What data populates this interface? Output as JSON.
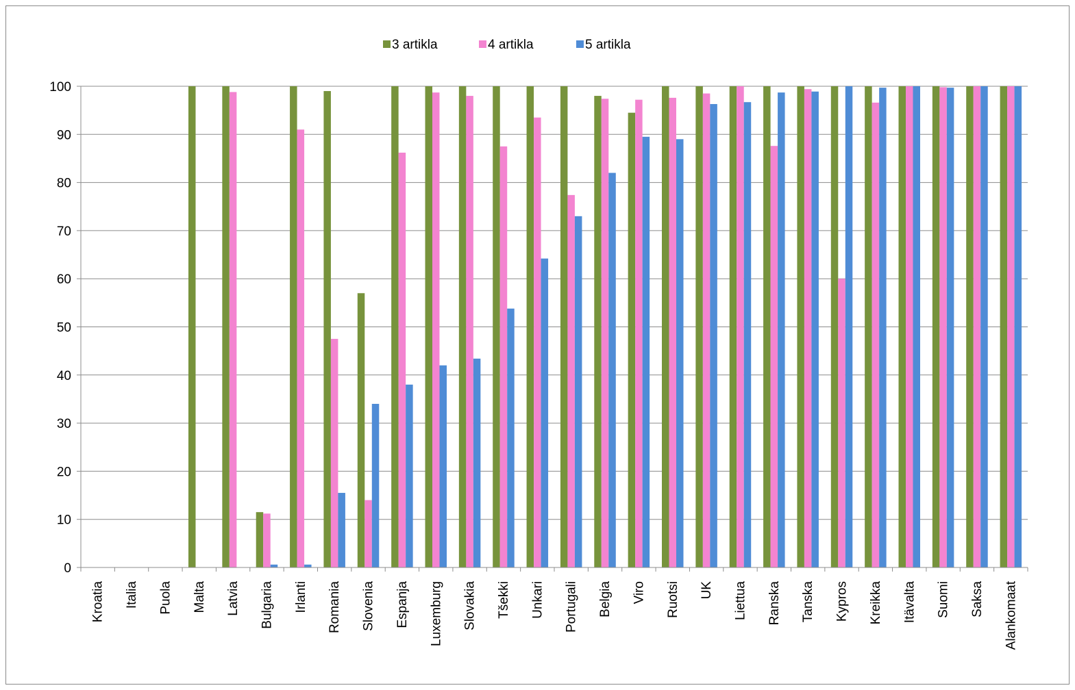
{
  "chart_data": {
    "type": "bar",
    "title": "",
    "xlabel": "",
    "ylabel": "",
    "ylim": [
      0,
      100
    ],
    "yticks": [
      0,
      10,
      20,
      30,
      40,
      50,
      60,
      70,
      80,
      90,
      100
    ],
    "grid": true,
    "legend_position": "top",
    "categories": [
      "Kroatia",
      "Italia",
      "Puola",
      "Malta",
      "Latvia",
      "Bulgaria",
      "Irlanti",
      "Romania",
      "Slovenia",
      "Espanja",
      "Luxemburg",
      "Slovakia",
      "Tšekki",
      "Unkari",
      "Portugali",
      "Belgia",
      "Viro",
      "Ruotsi",
      "UK",
      "Liettua",
      "Ranska",
      "Tanska",
      "Kypros",
      "Kreikka",
      "Itävalta",
      "Suomi",
      "Saksa",
      "Alankomaat"
    ],
    "series": [
      {
        "name": "3 artikla",
        "color": "#77933c",
        "values": [
          0,
          0,
          0,
          100,
          100,
          11.5,
          100,
          99,
          57,
          100,
          100,
          100,
          100,
          100,
          100,
          98,
          94.5,
          100,
          100,
          100,
          100,
          100,
          100,
          100,
          100,
          100,
          100,
          100
        ]
      },
      {
        "name": "4 artikla",
        "color": "#f384d0",
        "values": [
          0,
          0,
          0,
          0,
          98.8,
          11.2,
          91,
          47.5,
          14,
          86.2,
          98.7,
          98,
          87.5,
          93.5,
          77.4,
          97.4,
          97.2,
          97.6,
          98.5,
          100,
          87.6,
          99.4,
          60,
          96.6,
          100,
          99.8,
          100,
          100
        ]
      },
      {
        "name": "5 artikla",
        "color": "#4f8cd6",
        "values": [
          0,
          0,
          0,
          0,
          0,
          0.6,
          0.6,
          15.5,
          34,
          38,
          42,
          43.4,
          53.8,
          64.2,
          73,
          82,
          89.5,
          89,
          96.3,
          96.7,
          98.7,
          98.9,
          100,
          99.7,
          100,
          99.7,
          100,
          100
        ]
      }
    ]
  }
}
